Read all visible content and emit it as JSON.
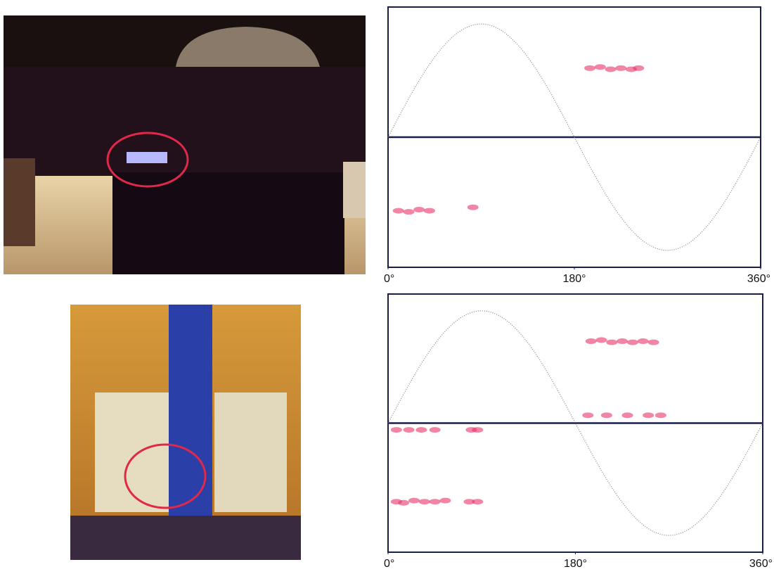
{
  "chart_data": [
    {
      "type": "scatter",
      "x": [
        195,
        205,
        215,
        225,
        235,
        242,
        10,
        20,
        30,
        40,
        82
      ],
      "values": [
        0.61,
        0.62,
        0.6,
        0.61,
        0.6,
        0.61,
        -0.65,
        -0.66,
        -0.64,
        -0.65,
        -0.62
      ],
      "color": "#e8336a",
      "xlim": [
        0,
        360
      ],
      "xticks": [
        {
          "value": 0,
          "label": "0°"
        },
        {
          "value": 180,
          "label": "180°"
        },
        {
          "value": 360,
          "label": "360°"
        }
      ],
      "ylim": [
        -1.15,
        1.15
      ]
    },
    {
      "type": "scatter",
      "x": [
        195,
        205,
        215,
        225,
        235,
        245,
        255,
        192,
        210,
        230,
        250,
        262,
        8,
        20,
        32,
        45,
        80,
        86,
        8,
        15,
        25,
        35,
        45,
        55,
        78,
        86
      ],
      "values": [
        0.73,
        0.74,
        0.72,
        0.73,
        0.72,
        0.73,
        0.72,
        0.07,
        0.07,
        0.07,
        0.07,
        0.07,
        -0.06,
        -0.06,
        -0.06,
        -0.06,
        -0.06,
        -0.06,
        -0.7,
        -0.71,
        -0.69,
        -0.7,
        -0.7,
        -0.69,
        -0.7,
        -0.7
      ],
      "color": "#e8336a",
      "xlim": [
        0,
        360
      ],
      "xticks": [
        {
          "value": 0,
          "label": "0°"
        },
        {
          "value": 180,
          "label": "180°"
        },
        {
          "value": 360,
          "label": "360°"
        }
      ],
      "ylim": [
        -1.15,
        1.15
      ]
    }
  ]
}
